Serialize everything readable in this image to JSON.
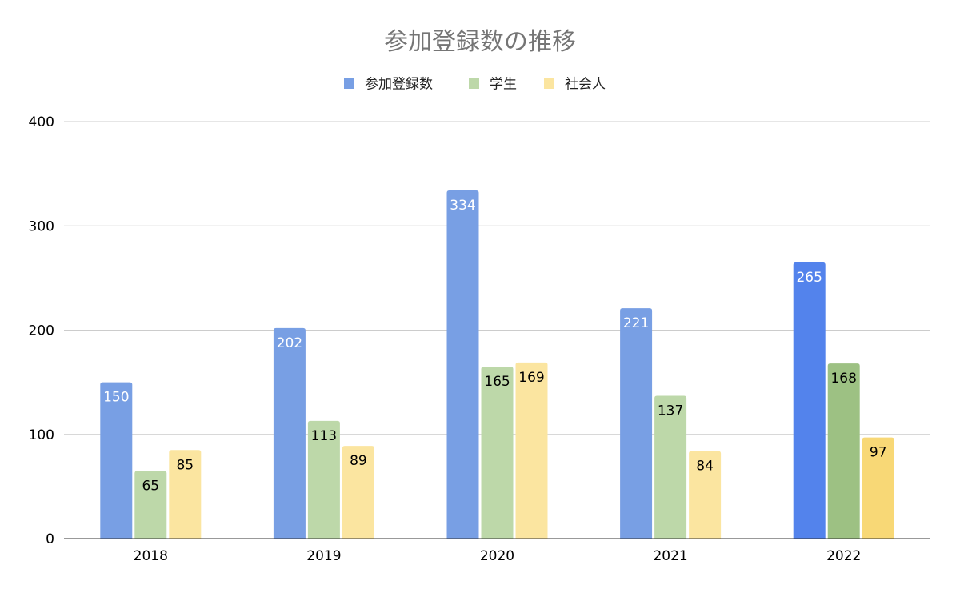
{
  "chart_data": {
    "type": "bar",
    "title": "参加登録数の推移",
    "categories": [
      "2018",
      "2019",
      "2020",
      "2021",
      "2022"
    ],
    "series": [
      {
        "name": "参加登録数",
        "values": [
          150,
          202,
          334,
          221,
          265
        ],
        "color": "#789fe4",
        "label_color": "#ffffff",
        "highlight_color": "#5383ec"
      },
      {
        "name": "学生",
        "values": [
          65,
          113,
          165,
          137,
          168
        ],
        "color": "#bdd8a9",
        "label_color": "#000000",
        "highlight_color": "#9dc183"
      },
      {
        "name": "社会人",
        "values": [
          85,
          89,
          169,
          84,
          97
        ],
        "color": "#fbe5a0",
        "label_color": "#000000",
        "highlight_color": "#f8d876"
      }
    ],
    "highlighted_category": "2022",
    "ylim": [
      0,
      400
    ],
    "yticks": [
      0,
      100,
      200,
      300,
      400
    ],
    "xlabel": "",
    "ylabel": "",
    "grid": true,
    "legend_position": "top-center",
    "data_labels": true
  }
}
